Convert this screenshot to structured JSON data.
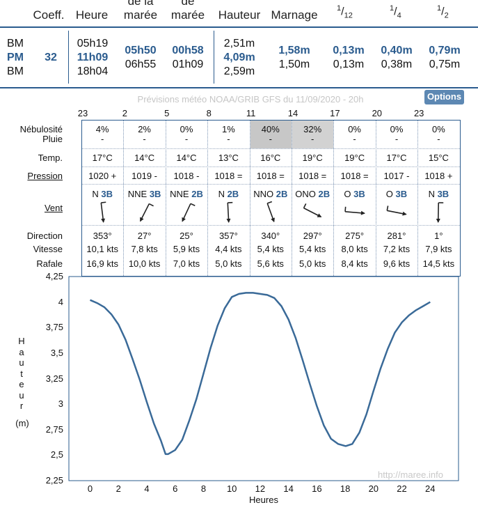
{
  "tide_table": {
    "headers": {
      "coeff": "Coeff.",
      "heure": "Heure",
      "maree_line1": "de la",
      "maree_line2": "marée",
      "de_line1": "de",
      "de_line2": "marée",
      "hauteur": "Hauteur",
      "marnage": "Marnage",
      "frac1_num": "1",
      "frac1_den": "12",
      "frac2_num": "1",
      "frac2_den": "4",
      "frac3_num": "1",
      "frac3_den": "2"
    },
    "types": [
      "BM",
      "PM",
      "BM"
    ],
    "coeff": "32",
    "heures": [
      "05h19",
      "11h09",
      "18h04"
    ],
    "duree_maree": [
      "05h50",
      "06h55"
    ],
    "duree_de_maree": [
      "00h58",
      "01h09"
    ],
    "hauteurs": [
      "2,51m",
      "4,09m",
      "2,59m"
    ],
    "marnage": [
      "1,58m",
      "1,50m"
    ],
    "douzieme": [
      "0,13m",
      "0,13m"
    ],
    "quart": [
      "0,40m",
      "0,38m"
    ],
    "demi": [
      "0,79m",
      "0,75m"
    ]
  },
  "weather": {
    "subtitle": "Prévisions météo NOAA/GRIB GFS du 11/09/2020 - 20h",
    "options_label": "Options",
    "hours": [
      "23",
      "2",
      "5",
      "8",
      "11",
      "14",
      "17",
      "20",
      "23"
    ],
    "labels": {
      "nebulosite": "Nébulosité",
      "pluie": "Pluie",
      "temp": "Temp.",
      "pression": "Pression",
      "vent": "Vent",
      "direction": "Direction",
      "vitesse": "Vitesse",
      "rafale": "Rafale"
    },
    "nebulosite": [
      "4%",
      "2%",
      "0%",
      "1%",
      "40%",
      "32%",
      "0%",
      "0%",
      "0%"
    ],
    "nebulosite_shade": [
      0,
      0,
      0,
      0,
      0.4,
      0.32,
      0,
      0,
      0
    ],
    "pluie": [
      "-",
      "-",
      "-",
      "-",
      "-",
      "-",
      "-",
      "-",
      "-"
    ],
    "temp": [
      "17°C",
      "14°C",
      "14°C",
      "13°C",
      "16°C",
      "19°C",
      "19°C",
      "17°C",
      "15°C"
    ],
    "pression": [
      "1020 +",
      "1019 -",
      "1018 -",
      "1018 =",
      "1018 =",
      "1018 =",
      "1018 =",
      "1017 -",
      "1018 +"
    ],
    "vent_dir": [
      "N",
      "NNE",
      "NNE",
      "N",
      "NNO",
      "ONO",
      "O",
      "O",
      "N"
    ],
    "vent_force": [
      "3B",
      "3B",
      "2B",
      "2B",
      "2B",
      "2B",
      "3B",
      "3B",
      "3B"
    ],
    "direction_deg": [
      353,
      27,
      25,
      357,
      340,
      297,
      275,
      281,
      1
    ],
    "direction": [
      "353°",
      "27°",
      "25°",
      "357°",
      "340°",
      "297°",
      "275°",
      "281°",
      "1°"
    ],
    "vitesse": [
      "10,1 kts",
      "7,8 kts",
      "5,9 kts",
      "4,4 kts",
      "5,4 kts",
      "5,4 kts",
      "8,0 kts",
      "7,2 kts",
      "7,9 kts"
    ],
    "rafale": [
      "16,9 kts",
      "10,0 kts",
      "7,0 kts",
      "5,0 kts",
      "5,6 kts",
      "5,0 kts",
      "8,4 kts",
      "9,6 kts",
      "14,5 kts"
    ]
  },
  "chart_data": {
    "type": "line",
    "xlabel": "Heures",
    "ylabel_letters": [
      "H",
      "a",
      "u",
      "t",
      "e",
      "u",
      "r"
    ],
    "ylabel_unit": "(m)",
    "watermark": "http://maree.info",
    "x_ticks": [
      "0",
      "2",
      "4",
      "6",
      "8",
      "10",
      "12",
      "14",
      "16",
      "18",
      "20",
      "22",
      "24"
    ],
    "y_ticks": [
      "4,25",
      "4",
      "3,75",
      "3,5",
      "3,25",
      "3",
      "2,75",
      "2,5",
      "2,25"
    ],
    "xlim": [
      -1.5,
      26
    ],
    "ylim": [
      2.25,
      4.25
    ],
    "grid": false,
    "series": [
      {
        "color": "#3a6a98",
        "x": [
          0,
          0.5,
          1,
          1.5,
          2,
          2.5,
          3,
          3.5,
          4,
          4.5,
          5,
          5.32,
          5.5,
          6,
          6.5,
          7,
          7.5,
          8,
          8.5,
          9,
          9.5,
          10,
          10.5,
          11,
          11.15,
          11.5,
          12,
          12.5,
          13,
          13.5,
          14,
          14.5,
          15,
          15.5,
          16,
          16.5,
          17,
          17.5,
          18,
          18.07,
          18.5,
          19,
          19.5,
          20,
          20.5,
          21,
          21.5,
          22,
          22.5,
          23,
          23.5,
          24
        ],
        "y": [
          4.02,
          3.99,
          3.95,
          3.88,
          3.78,
          3.63,
          3.44,
          3.24,
          3.02,
          2.81,
          2.64,
          2.51,
          2.51,
          2.55,
          2.65,
          2.84,
          3.05,
          3.3,
          3.55,
          3.77,
          3.94,
          4.05,
          4.08,
          4.09,
          4.09,
          4.09,
          4.08,
          4.07,
          4.04,
          3.96,
          3.83,
          3.65,
          3.43,
          3.2,
          2.98,
          2.79,
          2.66,
          2.61,
          2.59,
          2.59,
          2.61,
          2.72,
          2.9,
          3.13,
          3.35,
          3.54,
          3.7,
          3.8,
          3.87,
          3.92,
          3.96,
          4.0
        ]
      }
    ]
  }
}
